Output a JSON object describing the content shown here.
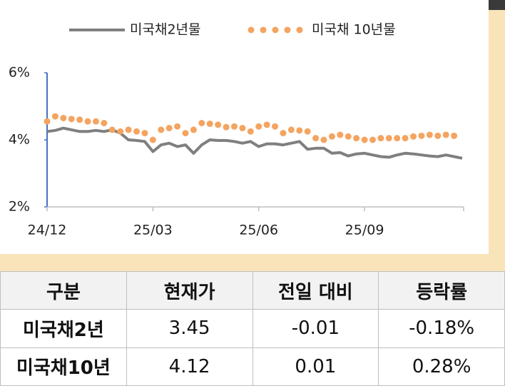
{
  "chart_data": {
    "type": "line",
    "categories": [
      "24/12",
      null,
      null,
      null,
      null,
      null,
      null,
      null,
      null,
      null,
      null,
      null,
      null,
      "25/03",
      null,
      null,
      null,
      null,
      null,
      null,
      null,
      null,
      null,
      null,
      null,
      null,
      "25/06",
      null,
      null,
      null,
      null,
      null,
      null,
      null,
      null,
      null,
      null,
      null,
      null,
      "25/09",
      null,
      null,
      null,
      null,
      null,
      null,
      null,
      null,
      null,
      null,
      null,
      null
    ],
    "series": [
      {
        "name": "미국채2년물",
        "color": "#7f7f7f",
        "style": "line",
        "values": [
          4.25,
          4.28,
          4.35,
          4.3,
          4.25,
          4.25,
          4.28,
          4.25,
          4.3,
          4.2,
          4.0,
          3.98,
          3.95,
          3.65,
          3.85,
          3.9,
          3.8,
          3.85,
          3.6,
          3.85,
          4.0,
          3.98,
          3.98,
          3.95,
          3.9,
          3.95,
          3.8,
          3.88,
          3.88,
          3.85,
          3.9,
          3.95,
          3.72,
          3.75,
          3.75,
          3.6,
          3.62,
          3.52,
          3.58,
          3.6,
          3.55,
          3.5,
          3.48,
          3.55,
          3.6,
          3.58,
          3.55,
          3.52,
          3.5,
          3.55,
          3.5,
          3.45
        ]
      },
      {
        "name": "미국채 10년물",
        "color": "#f4a460",
        "style": "dots",
        "values": [
          4.55,
          4.7,
          4.65,
          4.62,
          4.6,
          4.55,
          4.55,
          4.5,
          4.3,
          4.25,
          4.3,
          4.25,
          4.2,
          4.0,
          4.3,
          4.35,
          4.4,
          4.2,
          4.3,
          4.5,
          4.48,
          4.45,
          4.38,
          4.4,
          4.35,
          4.25,
          4.4,
          4.45,
          4.4,
          4.2,
          4.3,
          4.28,
          4.25,
          4.05,
          4.0,
          4.1,
          4.15,
          4.1,
          4.05,
          4.0,
          4.0,
          4.05,
          4.05,
          4.05,
          4.05,
          4.1,
          4.12,
          4.15,
          4.12,
          4.15,
          4.12,
          null
        ]
      }
    ],
    "ylim": [
      2,
      6
    ],
    "yticks": [
      {
        "value": 2,
        "label": "2%"
      },
      {
        "value": 4,
        "label": "4%"
      },
      {
        "value": 6,
        "label": "6%"
      }
    ],
    "legend": "top"
  },
  "table": {
    "header": [
      "구분",
      "현재가",
      "전일 대비",
      "등락률"
    ],
    "rows": [
      [
        "미국채2년",
        "3.45",
        "-0.01",
        "-0.18%"
      ],
      [
        "미국채10년",
        "4.12",
        "0.01",
        "0.28%"
      ]
    ]
  }
}
